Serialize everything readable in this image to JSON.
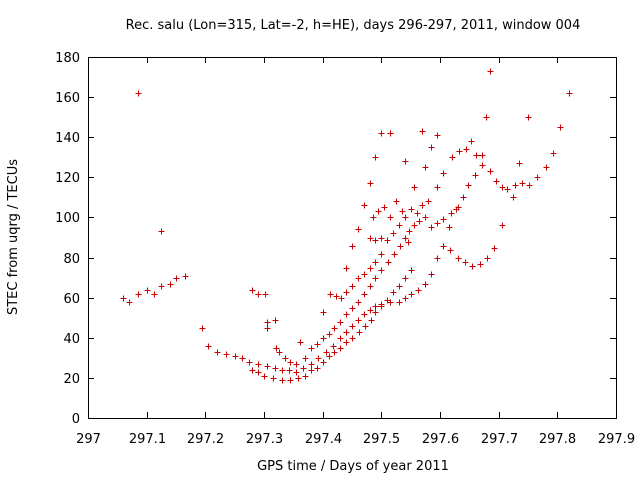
{
  "chart_data": {
    "type": "scatter",
    "title": "Rec. salu (Lon=315, Lat=-2, h=HE), days 296-297, 2011, window 004",
    "xlabel": "GPS time / Days of year 2011",
    "ylabel": "STEC from uqrg / TECUs",
    "xlim": [
      297,
      297.9
    ],
    "ylim": [
      0,
      180
    ],
    "x_ticks": [
      297,
      297.1,
      297.2,
      297.3,
      297.4,
      297.5,
      297.6,
      297.7,
      297.8,
      297.9
    ],
    "y_ticks": [
      0,
      20,
      40,
      60,
      80,
      100,
      120,
      140,
      160,
      180
    ],
    "x_tick_labels": [
      "297",
      "297.1",
      "297.2",
      "297.3",
      "297.4",
      "297.5",
      "297.6",
      "297.7",
      "297.8",
      "297.9"
    ],
    "y_tick_labels": [
      "0",
      "20",
      "40",
      "60",
      "80",
      "100",
      "120",
      "140",
      "160",
      "180"
    ],
    "grid": false,
    "marker": "+",
    "marker_color": "#cc0000",
    "points": [
      [
        297.06,
        60
      ],
      [
        297.07,
        58
      ],
      [
        297.085,
        62
      ],
      [
        297.1,
        64
      ],
      [
        297.112,
        62
      ],
      [
        297.125,
        66
      ],
      [
        297.14,
        67
      ],
      [
        297.15,
        70
      ],
      [
        297.165,
        71
      ],
      [
        297.085,
        162
      ],
      [
        297.125,
        93
      ],
      [
        297.195,
        45
      ],
      [
        297.205,
        36
      ],
      [
        297.22,
        33
      ],
      [
        297.235,
        32
      ],
      [
        297.25,
        31
      ],
      [
        297.262,
        30
      ],
      [
        297.275,
        28
      ],
      [
        297.29,
        27
      ],
      [
        297.305,
        26
      ],
      [
        297.318,
        25
      ],
      [
        297.33,
        24
      ],
      [
        297.342,
        24
      ],
      [
        297.355,
        23
      ],
      [
        297.367,
        25
      ],
      [
        297.38,
        27
      ],
      [
        297.392,
        30
      ],
      [
        297.405,
        33
      ],
      [
        297.418,
        36
      ],
      [
        297.43,
        40
      ],
      [
        297.44,
        43
      ],
      [
        297.45,
        46
      ],
      [
        297.46,
        49
      ],
      [
        297.47,
        52
      ],
      [
        297.48,
        54
      ],
      [
        297.49,
        56
      ],
      [
        297.5,
        57
      ],
      [
        297.515,
        58
      ],
      [
        297.53,
        58
      ],
      [
        297.54,
        60
      ],
      [
        297.55,
        62
      ],
      [
        297.562,
        64
      ],
      [
        297.575,
        67
      ],
      [
        297.585,
        72
      ],
      [
        297.595,
        80
      ],
      [
        297.605,
        86
      ],
      [
        297.617,
        84
      ],
      [
        297.63,
        80
      ],
      [
        297.642,
        78
      ],
      [
        297.655,
        76
      ],
      [
        297.668,
        77
      ],
      [
        297.68,
        80
      ],
      [
        297.692,
        85
      ],
      [
        297.705,
        96
      ],
      [
        297.28,
        64
      ],
      [
        297.29,
        62
      ],
      [
        297.302,
        62
      ],
      [
        297.305,
        48
      ],
      [
        297.305,
        45
      ],
      [
        297.318,
        49
      ],
      [
        297.32,
        35
      ],
      [
        297.325,
        33
      ],
      [
        297.335,
        30
      ],
      [
        297.345,
        28
      ],
      [
        297.355,
        27
      ],
      [
        297.362,
        38
      ],
      [
        297.37,
        30
      ],
      [
        297.28,
        24
      ],
      [
        297.29,
        23
      ],
      [
        297.3,
        21
      ],
      [
        297.315,
        20
      ],
      [
        297.33,
        19
      ],
      [
        297.345,
        19
      ],
      [
        297.358,
        20
      ],
      [
        297.37,
        21
      ],
      [
        297.38,
        24
      ],
      [
        297.39,
        25
      ],
      [
        297.4,
        28
      ],
      [
        297.41,
        31
      ],
      [
        297.42,
        33
      ],
      [
        297.43,
        35
      ],
      [
        297.44,
        38
      ],
      [
        297.45,
        40
      ],
      [
        297.462,
        43
      ],
      [
        297.472,
        46
      ],
      [
        297.482,
        49
      ],
      [
        297.49,
        53
      ],
      [
        297.5,
        56
      ],
      [
        297.51,
        59
      ],
      [
        297.52,
        63
      ],
      [
        297.53,
        66
      ],
      [
        297.54,
        70
      ],
      [
        297.55,
        74
      ],
      [
        297.38,
        35
      ],
      [
        297.39,
        37
      ],
      [
        297.4,
        40
      ],
      [
        297.41,
        42
      ],
      [
        297.42,
        45
      ],
      [
        297.43,
        48
      ],
      [
        297.44,
        52
      ],
      [
        297.45,
        55
      ],
      [
        297.46,
        58
      ],
      [
        297.47,
        62
      ],
      [
        297.48,
        66
      ],
      [
        297.49,
        70
      ],
      [
        297.5,
        74
      ],
      [
        297.512,
        78
      ],
      [
        297.522,
        82
      ],
      [
        297.532,
        86
      ],
      [
        297.54,
        90
      ],
      [
        297.548,
        93
      ],
      [
        297.556,
        96
      ],
      [
        297.565,
        98
      ],
      [
        297.575,
        100
      ],
      [
        297.585,
        95
      ],
      [
        297.595,
        97
      ],
      [
        297.605,
        99
      ],
      [
        297.618,
        102
      ],
      [
        297.628,
        104
      ],
      [
        297.4,
        53
      ],
      [
        297.412,
        62
      ],
      [
        297.422,
        61
      ],
      [
        297.432,
        60
      ],
      [
        297.44,
        63
      ],
      [
        297.45,
        66
      ],
      [
        297.46,
        70
      ],
      [
        297.47,
        72
      ],
      [
        297.48,
        75
      ],
      [
        297.49,
        78
      ],
      [
        297.5,
        82
      ],
      [
        297.44,
        75
      ],
      [
        297.45,
        86
      ],
      [
        297.46,
        94
      ],
      [
        297.47,
        106
      ],
      [
        297.48,
        117
      ],
      [
        297.49,
        130
      ],
      [
        297.5,
        142
      ],
      [
        297.515,
        142
      ],
      [
        297.54,
        128
      ],
      [
        297.57,
        143
      ],
      [
        297.595,
        141
      ],
      [
        297.48,
        90
      ],
      [
        297.49,
        89
      ],
      [
        297.5,
        90
      ],
      [
        297.51,
        89
      ],
      [
        297.52,
        92
      ],
      [
        297.53,
        96
      ],
      [
        297.54,
        100
      ],
      [
        297.55,
        104
      ],
      [
        297.56,
        102
      ],
      [
        297.57,
        106
      ],
      [
        297.58,
        108
      ],
      [
        297.485,
        100
      ],
      [
        297.495,
        103
      ],
      [
        297.505,
        105
      ],
      [
        297.515,
        100
      ],
      [
        297.525,
        108
      ],
      [
        297.535,
        103
      ],
      [
        297.545,
        88
      ],
      [
        297.555,
        115
      ],
      [
        297.575,
        125
      ],
      [
        297.585,
        135
      ],
      [
        297.595,
        115
      ],
      [
        297.605,
        122
      ],
      [
        297.62,
        130
      ],
      [
        297.632,
        133
      ],
      [
        297.645,
        134
      ],
      [
        297.652,
        138
      ],
      [
        297.662,
        131
      ],
      [
        297.672,
        131
      ],
      [
        297.615,
        95
      ],
      [
        297.63,
        105
      ],
      [
        297.64,
        110
      ],
      [
        297.648,
        116
      ],
      [
        297.66,
        121
      ],
      [
        297.672,
        126
      ],
      [
        297.685,
        123
      ],
      [
        297.695,
        118
      ],
      [
        297.705,
        115
      ],
      [
        297.715,
        114
      ],
      [
        297.728,
        116
      ],
      [
        297.74,
        117
      ],
      [
        297.752,
        116
      ],
      [
        297.678,
        150
      ],
      [
        297.685,
        173
      ],
      [
        297.725,
        110
      ],
      [
        297.735,
        127
      ],
      [
        297.75,
        150
      ],
      [
        297.765,
        120
      ],
      [
        297.78,
        125
      ],
      [
        297.792,
        132
      ],
      [
        297.805,
        145
      ],
      [
        297.82,
        162
      ]
    ]
  }
}
